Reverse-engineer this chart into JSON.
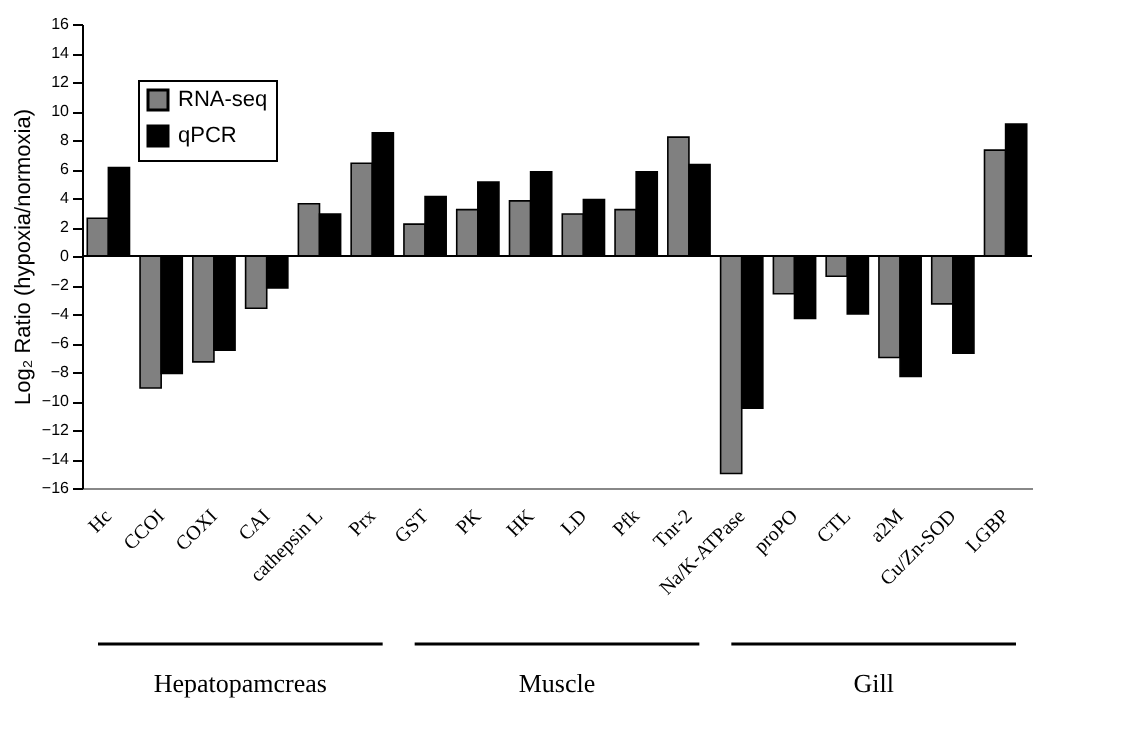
{
  "chart_data": {
    "type": "bar",
    "ylabel": "Log₂ Ratio (hypoxia/normoxia)",
    "categories": [
      "Hc",
      "CCOI",
      "COXI",
      "CAI",
      "cathepsin L",
      "Prx",
      "GST",
      "PK",
      "HK",
      "LD",
      "Pfk",
      "Tnr-2",
      "Na/K-ATPase",
      "proPO",
      "CTL",
      "a2M",
      "Cu/Zn-SOD",
      "LGBP"
    ],
    "series": [
      {
        "name": "RNA-seq",
        "color": "#808080",
        "values": [
          2.6,
          -9.1,
          -7.3,
          -3.6,
          3.6,
          6.4,
          2.2,
          3.2,
          3.8,
          2.9,
          3.2,
          8.2,
          -15.0,
          -2.6,
          -1.4,
          -7.0,
          -3.3,
          7.3
        ]
      },
      {
        "name": "qPCR",
        "color": "#000000",
        "values": [
          6.1,
          -8.1,
          -6.5,
          -2.2,
          2.9,
          8.5,
          4.1,
          5.1,
          5.8,
          3.9,
          5.8,
          6.3,
          -10.5,
          -4.3,
          -4.0,
          -8.3,
          -6.7,
          9.1
        ]
      }
    ],
    "ylim": [
      -16,
      16
    ],
    "yticks": [
      -16,
      -14,
      -12,
      -10,
      -8,
      -6,
      -4,
      -2,
      0,
      2,
      4,
      6,
      8,
      10,
      12,
      14,
      16
    ],
    "ref_lines": [
      {
        "axis": "y",
        "value": 0,
        "color": "#000000"
      }
    ],
    "annotations": [
      "Hepatopamcreas",
      "Muscle",
      "Gill"
    ],
    "legend": "top left",
    "grid": false
  }
}
